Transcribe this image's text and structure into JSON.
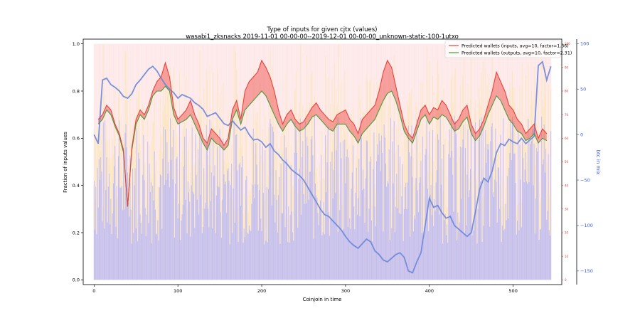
{
  "chart_data": {
    "type": "line",
    "title": "Type of inputs for given cjtx (values)",
    "subtitle": "wasabi1_zksnacks 2019-11-01 00-00-00--2019-12-01 00-00-00_unknown-static-100-1utxo",
    "xlabel": "Coinjoin in time",
    "ylabel": "Fraction of inputs values",
    "y2label": "btc in mix",
    "xlim": [
      -13,
      558
    ],
    "ylim": [
      -0.02,
      1.02
    ],
    "y3lim": [
      0,
      100
    ],
    "y2lim": [
      -165,
      105
    ],
    "xticks": [
      0,
      100,
      200,
      300,
      400,
      500
    ],
    "yticks": [
      0.0,
      0.2,
      0.4,
      0.6,
      0.8,
      1.0
    ],
    "y2ticks": [
      -150,
      -100,
      -50,
      0,
      50,
      100
    ],
    "y3ticks": [
      0,
      10,
      20,
      30,
      40,
      50,
      60,
      70,
      80,
      90,
      100
    ],
    "legend_position": "top-right",
    "colors": {
      "inputs_line": "#e8423a",
      "outputs_line": "#4c9a3c",
      "fill_between": "#ee4444",
      "btc_line": "#6a86dc",
      "bar_blue": "#8c96f0",
      "bar_yellow": "#fbe6a8",
      "bar_pink": "#fbd4d4",
      "right_axis_blue": "#3b5bd6",
      "right_axis_red": "#d83a3a"
    },
    "series": [
      {
        "name": "Predicted wallets (inputs, avg=10, factor=1.36)",
        "x": [
          5,
          10,
          15,
          20,
          25,
          30,
          35,
          40,
          45,
          50,
          55,
          60,
          65,
          70,
          75,
          80,
          85,
          90,
          95,
          100,
          105,
          110,
          115,
          120,
          125,
          130,
          135,
          140,
          145,
          150,
          155,
          160,
          165,
          170,
          175,
          180,
          185,
          190,
          195,
          200,
          205,
          210,
          215,
          220,
          225,
          230,
          235,
          240,
          245,
          250,
          255,
          260,
          265,
          270,
          275,
          280,
          285,
          290,
          295,
          300,
          305,
          310,
          315,
          320,
          325,
          330,
          335,
          340,
          345,
          350,
          355,
          360,
          365,
          370,
          375,
          380,
          385,
          390,
          395,
          400,
          405,
          410,
          415,
          420,
          425,
          430,
          435,
          440,
          445,
          450,
          455,
          460,
          465,
          470,
          475,
          480,
          485,
          490,
          495,
          500,
          505,
          510,
          515,
          520,
          525,
          530,
          535,
          540
        ],
        "y": [
          0.68,
          0.7,
          0.74,
          0.72,
          0.66,
          0.62,
          0.55,
          0.31,
          0.56,
          0.68,
          0.72,
          0.7,
          0.74,
          0.8,
          0.84,
          0.86,
          0.92,
          0.86,
          0.73,
          0.68,
          0.7,
          0.72,
          0.76,
          0.7,
          0.66,
          0.6,
          0.58,
          0.64,
          0.62,
          0.6,
          0.57,
          0.6,
          0.72,
          0.76,
          0.68,
          0.8,
          0.84,
          0.86,
          0.88,
          0.93,
          0.9,
          0.86,
          0.8,
          0.72,
          0.66,
          0.7,
          0.72,
          0.68,
          0.66,
          0.67,
          0.7,
          0.73,
          0.75,
          0.72,
          0.7,
          0.68,
          0.67,
          0.7,
          0.71,
          0.72,
          0.68,
          0.66,
          0.62,
          0.68,
          0.7,
          0.72,
          0.74,
          0.8,
          0.88,
          0.93,
          0.9,
          0.82,
          0.74,
          0.66,
          0.62,
          0.6,
          0.66,
          0.72,
          0.74,
          0.7,
          0.73,
          0.72,
          0.76,
          0.74,
          0.7,
          0.66,
          0.68,
          0.72,
          0.74,
          0.66,
          0.62,
          0.64,
          0.68,
          0.74,
          0.8,
          0.88,
          0.84,
          0.8,
          0.74,
          0.72,
          0.68,
          0.66,
          0.62,
          0.64,
          0.66,
          0.6,
          0.64,
          0.62
        ]
      },
      {
        "name": "Predicted wallets (outputs, avg=10, factor=2.31)",
        "x": [
          5,
          10,
          15,
          20,
          25,
          30,
          35,
          40,
          45,
          50,
          55,
          60,
          65,
          70,
          75,
          80,
          85,
          90,
          95,
          100,
          105,
          110,
          115,
          120,
          125,
          130,
          135,
          140,
          145,
          150,
          155,
          160,
          165,
          170,
          175,
          180,
          185,
          190,
          195,
          200,
          205,
          210,
          215,
          220,
          225,
          230,
          235,
          240,
          245,
          250,
          255,
          260,
          265,
          270,
          275,
          280,
          285,
          290,
          295,
          300,
          305,
          310,
          315,
          320,
          325,
          330,
          335,
          340,
          345,
          350,
          355,
          360,
          365,
          370,
          375,
          380,
          385,
          390,
          395,
          400,
          405,
          410,
          415,
          420,
          425,
          430,
          435,
          440,
          445,
          450,
          455,
          460,
          465,
          470,
          475,
          480,
          485,
          490,
          495,
          500,
          505,
          510,
          515,
          520,
          525,
          530,
          535,
          540
        ],
        "y": [
          0.66,
          0.68,
          0.72,
          0.7,
          0.65,
          0.61,
          0.54,
          0.31,
          0.55,
          0.66,
          0.7,
          0.68,
          0.72,
          0.78,
          0.8,
          0.8,
          0.82,
          0.8,
          0.7,
          0.66,
          0.67,
          0.68,
          0.7,
          0.66,
          0.62,
          0.58,
          0.55,
          0.6,
          0.58,
          0.57,
          0.55,
          0.57,
          0.68,
          0.72,
          0.66,
          0.72,
          0.74,
          0.76,
          0.78,
          0.8,
          0.78,
          0.74,
          0.7,
          0.66,
          0.63,
          0.66,
          0.68,
          0.65,
          0.63,
          0.64,
          0.66,
          0.69,
          0.7,
          0.68,
          0.66,
          0.64,
          0.63,
          0.66,
          0.66,
          0.66,
          0.63,
          0.61,
          0.58,
          0.62,
          0.64,
          0.66,
          0.68,
          0.72,
          0.76,
          0.79,
          0.8,
          0.76,
          0.7,
          0.63,
          0.6,
          0.58,
          0.63,
          0.68,
          0.7,
          0.66,
          0.69,
          0.68,
          0.7,
          0.69,
          0.66,
          0.63,
          0.64,
          0.67,
          0.69,
          0.62,
          0.59,
          0.61,
          0.65,
          0.7,
          0.74,
          0.78,
          0.76,
          0.72,
          0.68,
          0.66,
          0.63,
          0.62,
          0.59,
          0.6,
          0.62,
          0.58,
          0.6,
          0.59
        ]
      },
      {
        "name": "",
        "x": [
          0,
          5,
          10,
          15,
          20,
          25,
          30,
          35,
          40,
          45,
          50,
          55,
          60,
          65,
          70,
          75,
          80,
          85,
          90,
          95,
          100,
          105,
          110,
          115,
          120,
          125,
          130,
          135,
          140,
          145,
          150,
          155,
          160,
          165,
          170,
          175,
          180,
          185,
          190,
          195,
          200,
          205,
          210,
          215,
          220,
          225,
          230,
          235,
          240,
          245,
          250,
          255,
          260,
          265,
          270,
          275,
          280,
          285,
          290,
          295,
          300,
          305,
          310,
          315,
          320,
          325,
          330,
          335,
          340,
          345,
          350,
          355,
          360,
          365,
          370,
          375,
          380,
          385,
          390,
          395,
          400,
          405,
          410,
          415,
          420,
          425,
          430,
          435,
          440,
          445,
          450,
          455,
          460,
          465,
          470,
          475,
          480,
          485,
          490,
          495,
          500,
          505,
          510,
          515,
          520,
          525,
          530,
          535,
          540,
          545
        ],
        "y": [
          0,
          -10,
          60,
          62,
          55,
          52,
          48,
          42,
          40,
          45,
          55,
          60,
          66,
          72,
          75,
          70,
          62,
          55,
          50,
          46,
          40,
          44,
          42,
          40,
          35,
          32,
          28,
          20,
          22,
          24,
          18,
          12,
          10,
          15,
          10,
          5,
          8,
          0,
          -6,
          -5,
          -8,
          -14,
          -10,
          -18,
          -22,
          -28,
          -32,
          -38,
          -42,
          -45,
          -50,
          -58,
          -66,
          -74,
          -82,
          -88,
          -90,
          -95,
          -100,
          -105,
          -112,
          -118,
          -122,
          -125,
          -120,
          -115,
          -118,
          -128,
          -132,
          -138,
          -140,
          -136,
          -132,
          -130,
          -135,
          -150,
          -152,
          -140,
          -130,
          -100,
          -70,
          -80,
          -78,
          -86,
          -92,
          -90,
          -100,
          -104,
          -108,
          -112,
          -108,
          -85,
          -60,
          -48,
          -52,
          -40,
          -20,
          -10,
          -12,
          -5,
          -8,
          -10,
          -4,
          -10,
          -6,
          -2,
          76,
          80,
          60,
          75
        ]
      }
    ]
  }
}
